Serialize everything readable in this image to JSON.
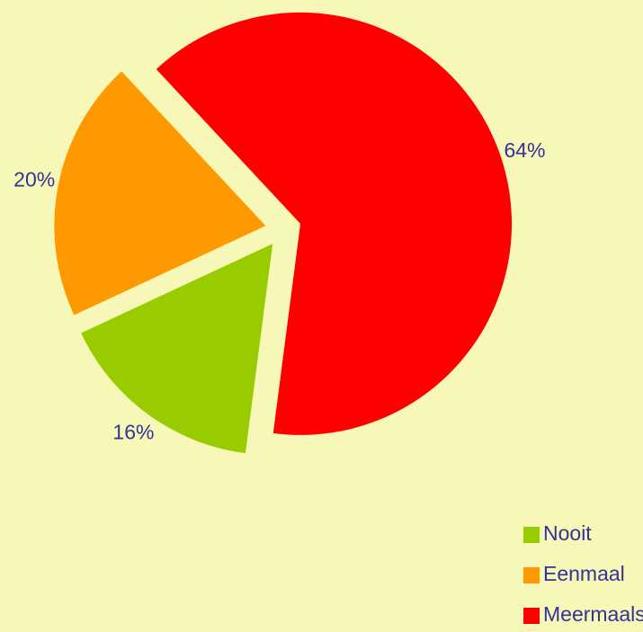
{
  "chart_data": {
    "type": "pie",
    "categories": [
      "Nooit",
      "Eenmaal",
      "Meermaals"
    ],
    "values": [
      16,
      20,
      64
    ],
    "value_labels": [
      "16%",
      "20%",
      "64%"
    ],
    "colors": [
      "#99cc00",
      "#ff9900",
      "#ff0000"
    ],
    "legend": "bottom-right"
  }
}
